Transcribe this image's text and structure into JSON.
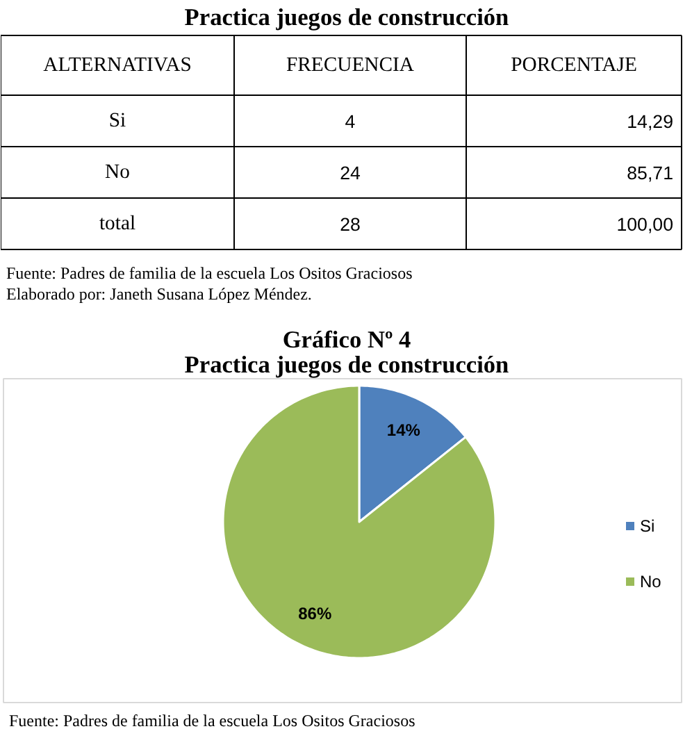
{
  "chart_data": [
    {
      "type": "other",
      "title": "Practica juegos de construcción",
      "categories": [
        "ALTERNATIVAS",
        "FRECUENCIA",
        "PORCENTAJE"
      ],
      "cell_labels": [
        [
          "Si",
          "4",
          "14,29"
        ],
        [
          "No",
          "24",
          "85,71"
        ],
        [
          "total",
          "28",
          "100,00"
        ]
      ],
      "annotations": [
        "Fuente: Padres de familia de la escuela Los Ositos Graciosos",
        "Elaborado por: Janeth Susana López Méndez."
      ]
    },
    {
      "type": "pie",
      "title": "Gráfico Nº 4",
      "subtitle": "Practica juegos de construcción",
      "categories": [
        "Si",
        "No"
      ],
      "values": [
        14.29,
        85.71
      ],
      "colors": [
        "#4f81bd",
        "#9bbb59"
      ],
      "value_labels": [
        "14%",
        "86%"
      ],
      "legend": "right",
      "annotations": [
        "Fuente: Padres de familia de la escuela Los Ositos Graciosos"
      ]
    }
  ]
}
